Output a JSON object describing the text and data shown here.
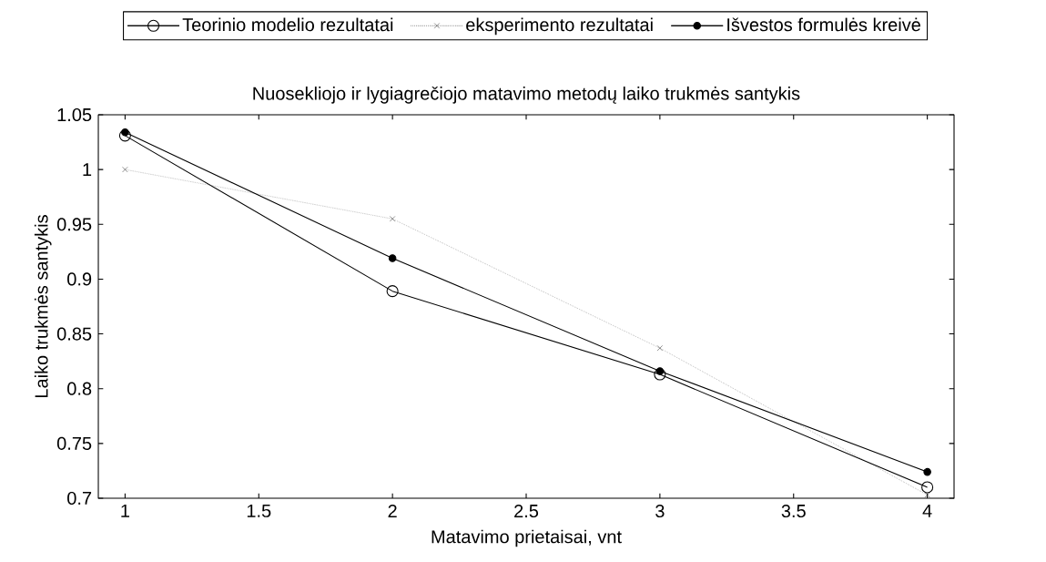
{
  "chart_data": {
    "type": "line",
    "title": "Nuosekliojo ir lygiagrečiojo matavimo metodų laiko trukmės santykis",
    "xlabel": "Matavimo prietaisai, vnt",
    "ylabel": "Laiko trukmės santykis",
    "x": [
      1,
      2,
      3,
      4
    ],
    "series": [
      {
        "name": "Teorinio modelio rezultatai",
        "color": "#000000",
        "marker": "circle_open",
        "line_style": "solid",
        "values": [
          1.031,
          0.889,
          0.813,
          0.71
        ]
      },
      {
        "name": "eksperimento rezultatai",
        "color": "#333333",
        "marker": "cross",
        "line_style": "dotted",
        "values": [
          1.0,
          0.955,
          0.837,
          0.703
        ]
      },
      {
        "name": "Išvestos formulės kreivė",
        "color": "#000000",
        "marker": "circle",
        "line_style": "solid",
        "values": [
          1.034,
          0.919,
          0.816,
          0.724
        ]
      }
    ],
    "xlim": [
      0.9,
      4.1
    ],
    "ylim": [
      0.7,
      1.05
    ],
    "xticks": [
      1,
      1.5,
      2,
      2.5,
      3,
      3.5,
      4
    ],
    "yticks": [
      0.7,
      0.75,
      0.8,
      0.85,
      0.9,
      0.95,
      1,
      1.05
    ],
    "grid": false,
    "legend": "top"
  }
}
